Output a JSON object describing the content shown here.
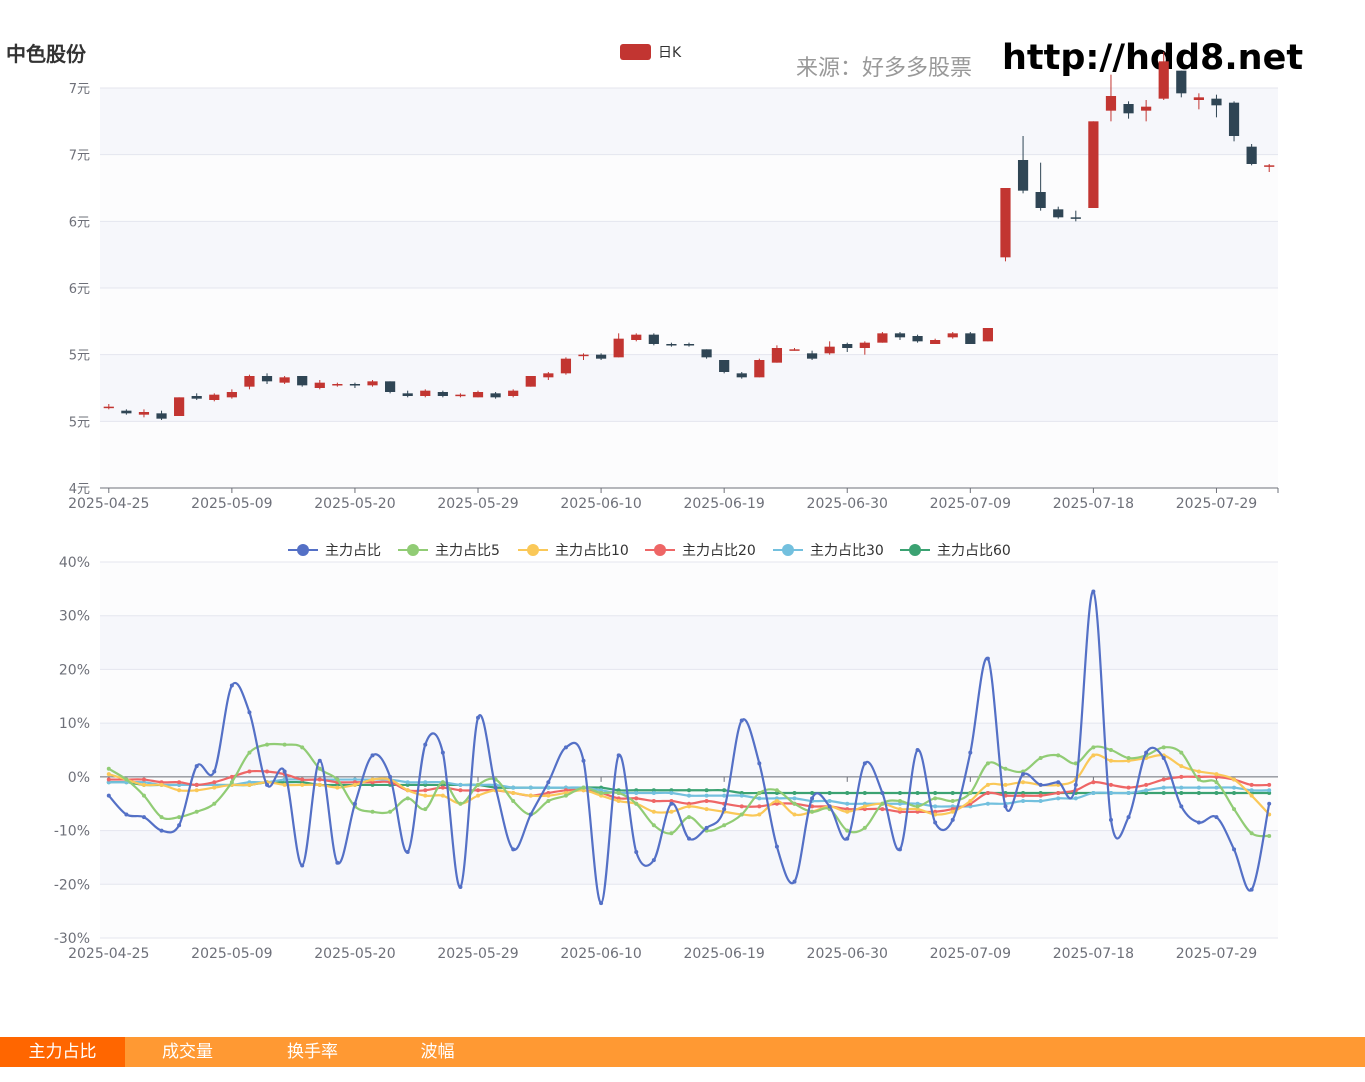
{
  "header": {
    "stock_name": "中色股份",
    "source": "来源：好多多股票",
    "site": "http://hdd8.net"
  },
  "tabs": [
    {
      "label": "主力占比",
      "active": true
    },
    {
      "label": "成交量",
      "active": false
    },
    {
      "label": "换手率",
      "active": false
    },
    {
      "label": "波幅",
      "active": false
    }
  ],
  "colors": {
    "up": "#c23531",
    "down": "#2f4554",
    "tab_bar": "#ff9933",
    "tab_active": "#ff6600"
  },
  "chart_data": [
    {
      "type": "candlestick",
      "legend": [
        "日K"
      ],
      "yticks": [
        "4元",
        "5元",
        "5元",
        "6元",
        "6元",
        "7元",
        "7元"
      ],
      "ylim": [
        4.0,
        7.0
      ],
      "xticks": [
        "2025-04-25",
        "2025-05-09",
        "2025-05-20",
        "2025-05-29",
        "2025-06-10",
        "2025-06-19",
        "2025-06-30",
        "2025-07-09",
        "2025-07-18",
        "2025-07-29"
      ],
      "ohlc": [
        [
          4.6,
          4.61,
          4.59,
          4.63
        ],
        [
          4.58,
          4.56,
          4.55,
          4.59
        ],
        [
          4.55,
          4.57,
          4.53,
          4.59
        ],
        [
          4.56,
          4.52,
          4.51,
          4.58
        ],
        [
          4.54,
          4.68,
          4.54,
          4.68
        ],
        [
          4.69,
          4.67,
          4.66,
          4.71
        ],
        [
          4.66,
          4.7,
          4.65,
          4.71
        ],
        [
          4.68,
          4.72,
          4.67,
          4.74
        ],
        [
          4.76,
          4.84,
          4.74,
          4.85
        ],
        [
          4.84,
          4.8,
          4.78,
          4.86
        ],
        [
          4.79,
          4.83,
          4.78,
          4.84
        ],
        [
          4.84,
          4.77,
          4.76,
          4.84
        ],
        [
          4.75,
          4.79,
          4.74,
          4.81
        ],
        [
          4.78,
          4.78,
          4.76,
          4.79
        ],
        [
          4.78,
          4.77,
          4.75,
          4.79
        ],
        [
          4.77,
          4.8,
          4.76,
          4.81
        ],
        [
          4.8,
          4.72,
          4.71,
          4.8
        ],
        [
          4.71,
          4.69,
          4.68,
          4.73
        ],
        [
          4.69,
          4.73,
          4.68,
          4.74
        ],
        [
          4.72,
          4.69,
          4.68,
          4.73
        ],
        [
          4.69,
          4.7,
          4.68,
          4.71
        ],
        [
          4.68,
          4.72,
          4.68,
          4.73
        ],
        [
          4.71,
          4.68,
          4.67,
          4.72
        ],
        [
          4.69,
          4.73,
          4.68,
          4.74
        ],
        [
          4.76,
          4.84,
          4.76,
          4.84
        ],
        [
          4.83,
          4.86,
          4.81,
          4.87
        ],
        [
          4.86,
          4.97,
          4.85,
          4.98
        ],
        [
          4.99,
          5.0,
          4.96,
          5.01
        ],
        [
          5.0,
          4.97,
          4.96,
          5.01
        ],
        [
          4.98,
          5.12,
          4.98,
          5.16
        ],
        [
          5.11,
          5.15,
          5.1,
          5.16
        ],
        [
          5.15,
          5.08,
          5.07,
          5.16
        ],
        [
          5.08,
          5.07,
          5.06,
          5.09
        ],
        [
          5.08,
          5.07,
          5.06,
          5.09
        ],
        [
          5.04,
          4.98,
          4.97,
          5.04
        ],
        [
          4.96,
          4.87,
          4.86,
          4.96
        ],
        [
          4.86,
          4.83,
          4.82,
          4.87
        ],
        [
          4.83,
          4.96,
          4.83,
          4.97
        ],
        [
          4.94,
          5.05,
          4.94,
          5.07
        ],
        [
          5.04,
          5.04,
          5.03,
          5.05
        ],
        [
          5.01,
          4.97,
          4.96,
          5.03
        ],
        [
          5.01,
          5.06,
          5.0,
          5.1
        ],
        [
          5.08,
          5.05,
          5.02,
          5.09
        ],
        [
          5.05,
          5.09,
          5.0,
          5.1
        ],
        [
          5.09,
          5.16,
          5.09,
          5.17
        ],
        [
          5.16,
          5.13,
          5.11,
          5.17
        ],
        [
          5.14,
          5.1,
          5.09,
          5.15
        ],
        [
          5.08,
          5.11,
          5.08,
          5.12
        ],
        [
          5.13,
          5.16,
          5.12,
          5.17
        ],
        [
          5.16,
          5.08,
          5.08,
          5.17
        ],
        [
          5.1,
          5.2,
          5.1,
          5.2
        ],
        [
          5.73,
          6.25,
          5.7,
          6.25
        ],
        [
          6.46,
          6.23,
          6.21,
          6.64
        ],
        [
          6.22,
          6.1,
          6.08,
          6.44
        ],
        [
          6.09,
          6.03,
          6.02,
          6.11
        ],
        [
          6.03,
          6.02,
          6.0,
          6.08
        ],
        [
          6.1,
          6.75,
          6.1,
          6.75
        ],
        [
          6.83,
          6.94,
          6.75,
          7.1
        ],
        [
          6.88,
          6.81,
          6.77,
          6.9
        ],
        [
          6.83,
          6.86,
          6.75,
          6.91
        ],
        [
          6.92,
          7.2,
          6.91,
          7.27
        ],
        [
          7.13,
          6.96,
          6.93,
          7.13
        ],
        [
          6.91,
          6.93,
          6.84,
          6.96
        ],
        [
          6.92,
          6.87,
          6.78,
          6.95
        ],
        [
          6.89,
          6.64,
          6.6,
          6.9
        ],
        [
          6.56,
          6.43,
          6.42,
          6.58
        ],
        [
          6.41,
          6.42,
          6.37,
          6.43
        ]
      ]
    },
    {
      "type": "line",
      "yticks": [
        "40%",
        "30%",
        "20%",
        "10%",
        "0%",
        "-10%",
        "-20%",
        "-30%"
      ],
      "ylim": [
        -30,
        40
      ],
      "xticks": [
        "2025-04-25",
        "2025-05-09",
        "2025-05-20",
        "2025-05-29",
        "2025-06-10",
        "2025-06-19",
        "2025-06-30",
        "2025-07-09",
        "2025-07-18",
        "2025-07-29"
      ],
      "series": [
        {
          "name": "主力占比",
          "color": "#5470c6",
          "values": [
            -3.5,
            -7,
            -7.5,
            -10,
            -9,
            2,
            1,
            17,
            12,
            -1.5,
            1,
            -16.5,
            3,
            -16,
            -5,
            4,
            0,
            -14,
            6,
            4.5,
            -20.5,
            11,
            -2,
            -13.5,
            -7,
            -1,
            5.5,
            3,
            -23.5,
            4,
            -14,
            -15.5,
            -5,
            -11.5,
            -9.5,
            -6,
            10.5,
            2.5,
            -13,
            -19.5,
            -4,
            -5.5,
            -11.5,
            2.5,
            -3,
            -13.5,
            5,
            -8.5,
            -8,
            4.5,
            22,
            -5.5,
            0.5,
            -1.5,
            -1,
            -1.5,
            34.5,
            -8,
            -7.5,
            4.5,
            3.5,
            -5.5,
            -8.5,
            -7.5,
            -13.5,
            -21,
            -5
          ]
        },
        {
          "name": "主力占比5",
          "color": "#91cc75",
          "values": [
            1.5,
            -0.5,
            -3.5,
            -7.5,
            -7.5,
            -6.5,
            -5,
            -1,
            4.5,
            6,
            6,
            5.5,
            1.5,
            -0.5,
            -5.5,
            -6.5,
            -6.5,
            -4,
            -6,
            -1,
            -5,
            -1.5,
            -0.5,
            -4.5,
            -7,
            -4.5,
            -3.5,
            -2,
            -3,
            -3,
            -5,
            -9,
            -10.5,
            -7.5,
            -10,
            -9,
            -7,
            -3,
            -2.5,
            -5,
            -6.5,
            -6,
            -10,
            -9.5,
            -5,
            -4.5,
            -5.5,
            -4,
            -4.5,
            -3,
            2.5,
            1.5,
            1,
            3.5,
            4,
            2.5,
            5.5,
            5,
            3.5,
            4,
            5.5,
            4.5,
            -0.5,
            -1,
            -6,
            -10.5,
            -11
          ]
        },
        {
          "name": "主力占比10",
          "color": "#fac858",
          "values": [
            0.5,
            -0.5,
            -1.5,
            -1.5,
            -2.5,
            -2.5,
            -2,
            -1.5,
            -1.5,
            -1,
            -1.5,
            -1.5,
            -1.5,
            -2,
            -1.5,
            -0.5,
            -0.5,
            -2.5,
            -3.5,
            -3.5,
            -5,
            -3.5,
            -2.5,
            -3,
            -3.5,
            -3.5,
            -3,
            -2.5,
            -3.5,
            -4.5,
            -5,
            -6.5,
            -6.5,
            -5.5,
            -6,
            -6.5,
            -7,
            -7,
            -4.5,
            -7,
            -6.5,
            -5.5,
            -6.5,
            -5.5,
            -5,
            -6,
            -6,
            -7,
            -6.5,
            -4.5,
            -1.5,
            -1.5,
            -1,
            -1.5,
            -1.5,
            -0.5,
            4,
            3,
            3,
            3.5,
            4,
            2,
            1,
            0.5,
            -0.5,
            -3.5,
            -7
          ]
        },
        {
          "name": "主力占比20",
          "color": "#ee6666",
          "values": [
            -0.5,
            -0.5,
            -0.5,
            -1,
            -1,
            -1.5,
            -1,
            0,
            1,
            1,
            0.5,
            -0.5,
            -0.5,
            -1,
            -1,
            -1,
            -1,
            -2.5,
            -2.5,
            -2,
            -2.5,
            -2.5,
            -2.5,
            -3,
            -3.5,
            -3,
            -2.5,
            -2.5,
            -3,
            -4,
            -4,
            -4.5,
            -4.5,
            -5,
            -4.5,
            -5,
            -5.5,
            -5.5,
            -5,
            -5,
            -5.5,
            -5.5,
            -6,
            -6,
            -6,
            -6.5,
            -6.5,
            -6.5,
            -6,
            -5,
            -3,
            -3.5,
            -3.5,
            -3.5,
            -3,
            -2.5,
            -1,
            -1.5,
            -2,
            -1.5,
            -0.5,
            0,
            0,
            0,
            -0.5,
            -1.5,
            -1.5
          ]
        },
        {
          "name": "主力占比30",
          "color": "#73c0de",
          "values": [
            -1,
            -1,
            -1,
            -1.5,
            -1.5,
            -1.5,
            -1.5,
            -1.5,
            -1,
            -1,
            -0.5,
            -0.5,
            -0.5,
            -0.5,
            -0.5,
            -0.5,
            -0.5,
            -1,
            -1,
            -1,
            -1.5,
            -1.5,
            -1.5,
            -2,
            -2,
            -2,
            -2,
            -2,
            -2.5,
            -3,
            -3,
            -3,
            -3,
            -3.5,
            -3.5,
            -3.5,
            -3.5,
            -4,
            -4,
            -4,
            -4.5,
            -4.5,
            -5,
            -5,
            -5,
            -5,
            -5,
            -5.5,
            -5.5,
            -5.5,
            -5,
            -5,
            -4.5,
            -4.5,
            -4,
            -4,
            -3,
            -3,
            -3,
            -2.5,
            -2,
            -2,
            -2,
            -2,
            -2,
            -2.5,
            -2.5
          ]
        },
        {
          "name": "主力占比60",
          "color": "#3ba272",
          "values": [
            -1,
            -1,
            -1.5,
            -1.5,
            -1.5,
            -1.5,
            -1.5,
            -1.5,
            -1.5,
            -1,
            -1,
            -1,
            -1.5,
            -1.5,
            -1.5,
            -1.5,
            -1.5,
            -1.5,
            -1.5,
            -1.5,
            -1.5,
            -1.5,
            -2,
            -2,
            -2,
            -2,
            -2,
            -2,
            -2,
            -2.5,
            -2.5,
            -2.5,
            -2.5,
            -2.5,
            -2.5,
            -2.5,
            -3,
            -3,
            -3,
            -3,
            -3,
            -3,
            -3,
            -3,
            -3,
            -3,
            -3,
            -3,
            -3,
            -3,
            -3,
            -3,
            -3,
            -3,
            -3,
            -3,
            -3,
            -3,
            -3,
            -3,
            -3,
            -3,
            -3,
            -3,
            -3,
            -3,
            -3
          ]
        }
      ]
    }
  ]
}
